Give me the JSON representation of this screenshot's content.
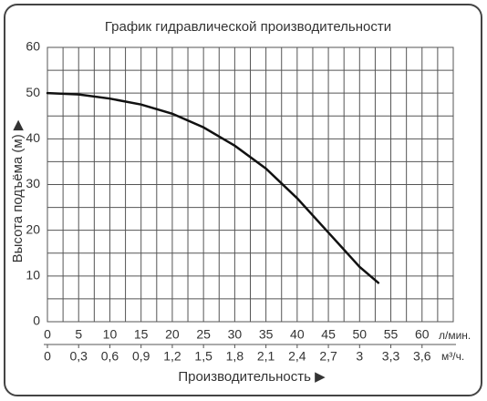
{
  "chart_data": {
    "type": "line",
    "title": "График гидравлической производительности",
    "ylabel": "Высота подъёма (м) ▶",
    "xlabel": "Производительность ▶",
    "xunit": "л/мин.",
    "x2unit": "м³/ч.",
    "x": [
      0,
      5,
      10,
      15,
      20,
      25,
      30,
      35,
      40,
      45,
      50,
      53
    ],
    "series": [
      {
        "color": "#111111",
        "values": [
          50,
          49.7,
          48.8,
          47.5,
          45.5,
          42.5,
          38.5,
          33.5,
          27,
          19.5,
          12,
          8.5
        ]
      }
    ],
    "xlim": [
      0,
      65
    ],
    "xticks": [
      0,
      5,
      10,
      15,
      20,
      25,
      30,
      35,
      40,
      45,
      50,
      55,
      60
    ],
    "xminorticks": [
      2.5,
      7.5,
      12.5,
      17.5,
      22.5,
      27.5,
      32.5,
      37.5,
      42.5,
      47.5,
      52.5,
      57.5,
      62.5,
      65
    ],
    "x2lim": [
      0,
      3.9
    ],
    "x2ticks": [
      0,
      {
        "value": 0.3,
        "label": "0,3"
      },
      {
        "value": 0.6,
        "label": "0,6"
      },
      {
        "value": 0.9,
        "label": "0,9"
      },
      {
        "value": 1.2,
        "label": "1,2"
      },
      {
        "value": 1.5,
        "label": "1,5"
      },
      {
        "value": 1.8,
        "label": "1,8"
      },
      {
        "value": 2.1,
        "label": "2,1"
      },
      {
        "value": 2.4,
        "label": "2,4"
      },
      {
        "value": 2.7,
        "label": "2,7"
      },
      3,
      {
        "value": 3.3,
        "label": "3,3"
      },
      {
        "value": 3.6,
        "label": "3,6"
      }
    ],
    "ylim": [
      0,
      60
    ],
    "yticks": [
      0,
      10,
      20,
      30,
      40,
      50,
      60
    ],
    "yminorticks": [
      5,
      15,
      25,
      35,
      45,
      55
    ],
    "grid": true
  }
}
